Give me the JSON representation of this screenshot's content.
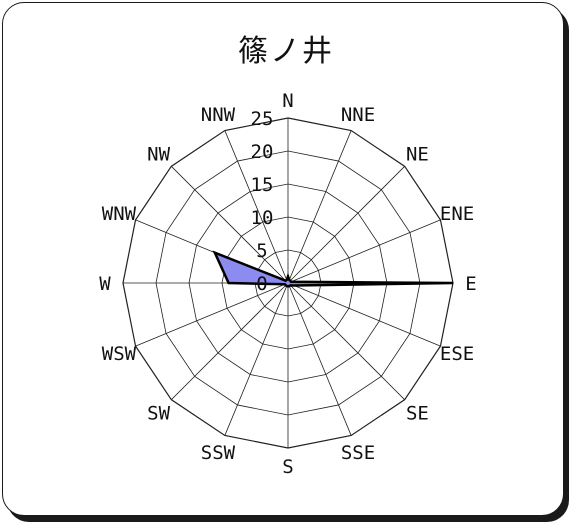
{
  "chart_data": {
    "type": "radar",
    "title": "篠ノ井",
    "directions": [
      "N",
      "NNE",
      "NE",
      "ENE",
      "E",
      "ESE",
      "SE",
      "SSE",
      "S",
      "SSW",
      "SW",
      "WSW",
      "W",
      "WNW",
      "NW",
      "NNW"
    ],
    "values": [
      1,
      0.5,
      0.5,
      0.5,
      25,
      1,
      0.5,
      0.5,
      0.5,
      0.5,
      0.5,
      0.5,
      9,
      12,
      0.5,
      0.5
    ],
    "radial_ticks": [
      "0",
      "5",
      "10",
      "15",
      "20",
      "25"
    ],
    "rmax": 25,
    "grid": true,
    "fill_color": "#8c8cf0",
    "stroke_color": "#000000"
  }
}
